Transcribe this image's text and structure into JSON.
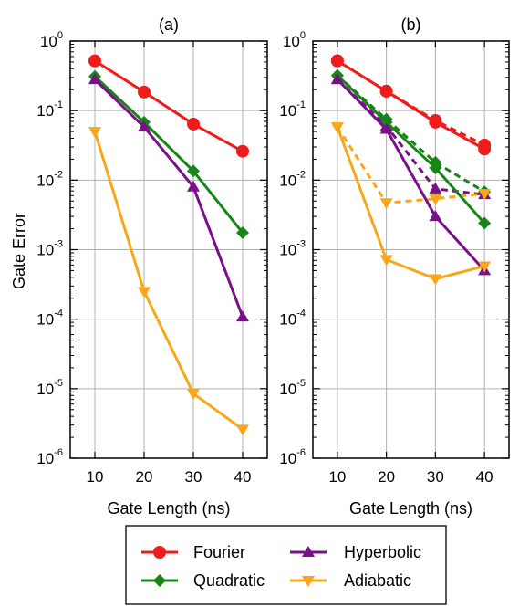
{
  "chart_data": {
    "type": "line",
    "y_scale": "log",
    "ylabel": "Gate Error",
    "xlabel": "Gate Length (ns)",
    "x_ticks": [
      10,
      20,
      30,
      40
    ],
    "xlim": [
      5,
      45
    ],
    "ylim": [
      1e-06,
      1
    ],
    "y_ticks": [
      1e-06,
      1e-05,
      0.0001,
      0.001,
      0.01,
      0.1,
      1
    ],
    "y_tick_labels": [
      {
        "base": "10",
        "exp": "-6"
      },
      {
        "base": "10",
        "exp": "-5"
      },
      {
        "base": "10",
        "exp": "-4"
      },
      {
        "base": "10",
        "exp": "-3"
      },
      {
        "base": "10",
        "exp": "-2"
      },
      {
        "base": "10",
        "exp": "-1"
      },
      {
        "base": "10",
        "exp": "0"
      }
    ],
    "grid": true,
    "legend": {
      "placement": "bottom",
      "entries": [
        {
          "name": "Fourier",
          "color": "#ef1c1c",
          "marker": "circle"
        },
        {
          "name": "Quadratic",
          "color": "#178617",
          "marker": "diamond"
        },
        {
          "name": "Hyperbolic",
          "color": "#7a0f8a",
          "marker": "triangle-up"
        },
        {
          "name": "Adiabatic",
          "color": "#f9a61b",
          "marker": "triangle-down"
        }
      ]
    },
    "panels": [
      {
        "title": "(a)",
        "series": [
          {
            "name": "Fourier",
            "style": "solid",
            "x": [
              10,
              20,
              30,
              40
            ],
            "y": [
              0.52,
              0.185,
              0.064,
              0.026
            ]
          },
          {
            "name": "Quadratic",
            "style": "solid",
            "x": [
              10,
              20,
              30,
              40
            ],
            "y": [
              0.31,
              0.068,
              0.0135,
              0.00175
            ]
          },
          {
            "name": "Hyperbolic",
            "style": "solid",
            "x": [
              10,
              20,
              30,
              40
            ],
            "y": [
              0.28,
              0.058,
              0.008,
              0.000108
            ]
          },
          {
            "name": "Adiabatic",
            "style": "solid",
            "x": [
              10,
              20,
              30,
              40
            ],
            "y": [
              0.05,
              0.00025,
              8.5e-06,
              2.6e-06
            ]
          }
        ]
      },
      {
        "title": "(b)",
        "series": [
          {
            "name": "Fourier",
            "style": "solid",
            "x": [
              10,
              20,
              30,
              40
            ],
            "y": [
              0.52,
              0.19,
              0.068,
              0.028
            ]
          },
          {
            "name": "Fourier",
            "style": "dashed",
            "x": [
              10,
              20,
              30,
              40
            ],
            "y": [
              0.52,
              0.19,
              0.072,
              0.032
            ]
          },
          {
            "name": "Quadratic",
            "style": "solid",
            "x": [
              10,
              20,
              30,
              40
            ],
            "y": [
              0.32,
              0.068,
              0.015,
              0.0024
            ]
          },
          {
            "name": "Quadratic",
            "style": "dashed",
            "x": [
              10,
              20,
              30,
              40
            ],
            "y": [
              0.32,
              0.075,
              0.018,
              0.0068
            ]
          },
          {
            "name": "Hyperbolic",
            "style": "solid",
            "x": [
              10,
              20,
              30,
              40
            ],
            "y": [
              0.28,
              0.054,
              0.003,
              0.0005
            ]
          },
          {
            "name": "Hyperbolic",
            "style": "dashed",
            "x": [
              10,
              20,
              30,
              40
            ],
            "y": [
              0.28,
              0.06,
              0.0075,
              0.0062
            ]
          },
          {
            "name": "Adiabatic",
            "style": "solid",
            "x": [
              10,
              20,
              30,
              40
            ],
            "y": [
              0.058,
              0.00072,
              0.00038,
              0.00058
            ]
          },
          {
            "name": "Adiabatic",
            "style": "dashed",
            "x": [
              10,
              20,
              30,
              40
            ],
            "y": [
              0.058,
              0.0047,
              0.0054,
              0.0064
            ]
          }
        ]
      }
    ]
  }
}
